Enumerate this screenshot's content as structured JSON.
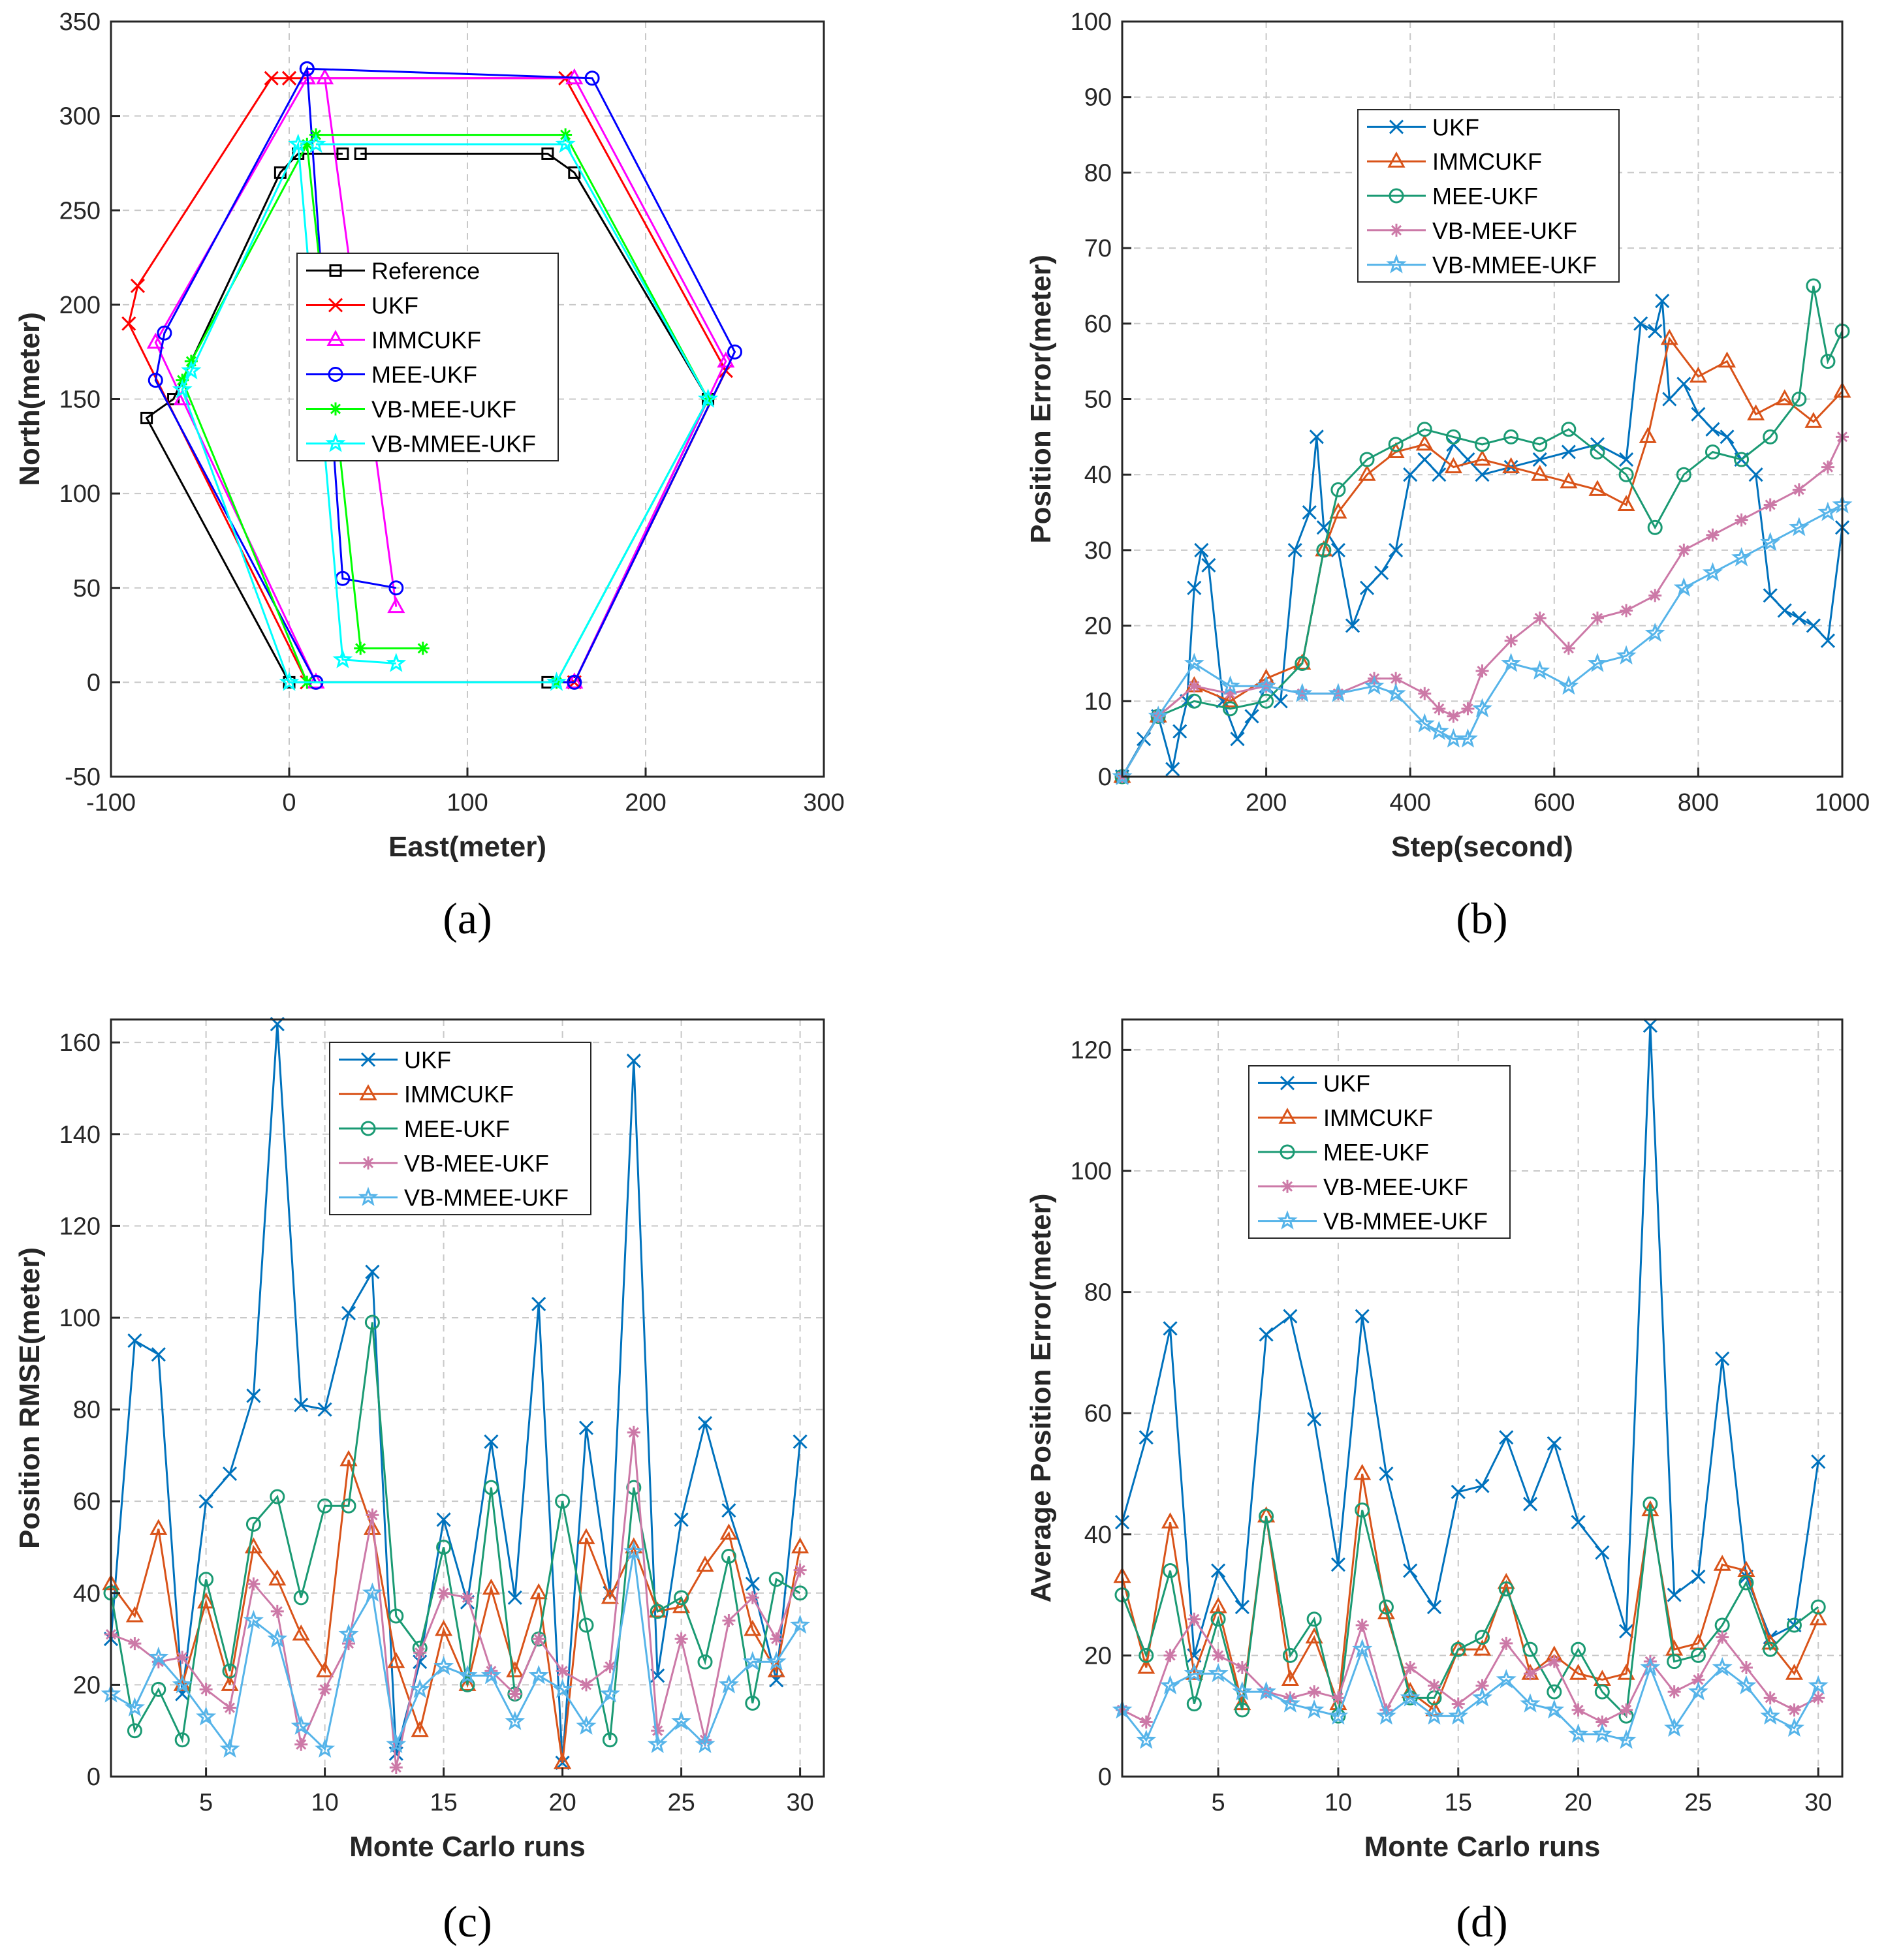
{
  "chart_data": [
    {
      "type": "line",
      "label": "(a)",
      "xlabel": "East(meter)",
      "ylabel": "North(meter)",
      "xlim": [
        -100,
        300
      ],
      "ylim": [
        -50,
        350
      ],
      "xticks": [
        -100,
        0,
        100,
        200,
        300
      ],
      "yticks": [
        -50,
        0,
        50,
        100,
        150,
        200,
        250,
        300,
        350
      ],
      "grid": true,
      "legend_position": "center",
      "series": [
        {
          "name": "Reference",
          "color": "#000000",
          "marker": "square",
          "x": [
            40,
            145,
            160,
            235,
            160,
            145,
            0,
            -80,
            -65,
            -5,
            5,
            30
          ],
          "y": [
            280,
            280,
            270,
            150,
            0,
            0,
            0,
            140,
            150,
            270,
            280,
            280
          ]
        },
        {
          "name": "UKF",
          "color": "#ff0000",
          "marker": "x",
          "x": [
            0,
            155,
            245,
            160,
            10,
            -90,
            -85,
            -10,
            0
          ],
          "y": [
            320,
            320,
            165,
            0,
            0,
            190,
            210,
            320,
            320
          ]
        },
        {
          "name": "IMMCUKF",
          "color": "#ff00ff",
          "marker": "triangle",
          "x": [
            10,
            160,
            245,
            160,
            15,
            -60,
            -75,
            10,
            20,
            60
          ],
          "y": [
            320,
            320,
            170,
            0,
            0,
            150,
            180,
            320,
            320,
            40
          ]
        },
        {
          "name": "MEE-UKF",
          "color": "#0000ff",
          "marker": "circle",
          "x": [
            10,
            170,
            250,
            160,
            15,
            -75,
            -70,
            10,
            30,
            60
          ],
          "y": [
            325,
            320,
            175,
            0,
            0,
            160,
            185,
            325,
            55,
            50
          ]
        },
        {
          "name": "VB-MEE-UKF",
          "color": "#00ff00",
          "marker": "asterisk",
          "x": [
            15,
            155,
            235,
            150,
            10,
            -60,
            -55,
            10,
            40,
            75
          ],
          "y": [
            290,
            290,
            150,
            0,
            0,
            160,
            170,
            285,
            18,
            18
          ]
        },
        {
          "name": "VB-MMEE-UKF",
          "color": "#00ffff",
          "marker": "star",
          "x": [
            15,
            155,
            235,
            150,
            0,
            -60,
            -55,
            5,
            30,
            60
          ],
          "y": [
            285,
            285,
            150,
            0,
            0,
            155,
            165,
            285,
            12,
            10
          ]
        }
      ]
    },
    {
      "type": "line",
      "label": "(b)",
      "xlabel": "Step(second)",
      "ylabel": "Position Error(meter)",
      "xlim": [
        0,
        1000
      ],
      "ylim": [
        0,
        100
      ],
      "xticks": [
        200,
        400,
        600,
        800,
        1000
      ],
      "yticks": [
        0,
        10,
        20,
        30,
        40,
        50,
        60,
        70,
        80,
        90,
        100
      ],
      "grid": true,
      "legend_position": "top-center",
      "series": [
        {
          "name": "UKF",
          "color": "#0072bd",
          "marker": "x",
          "x": [
            0,
            30,
            50,
            70,
            80,
            90,
            100,
            110,
            120,
            140,
            160,
            180,
            200,
            220,
            240,
            260,
            270,
            280,
            300,
            320,
            340,
            360,
            380,
            400,
            420,
            440,
            460,
            480,
            500,
            540,
            580,
            620,
            660,
            700,
            720,
            740,
            750,
            760,
            780,
            800,
            820,
            840,
            860,
            880,
            900,
            920,
            940,
            960,
            980,
            1000
          ],
          "y": [
            0,
            5,
            8,
            1,
            6,
            10,
            25,
            30,
            28,
            10,
            5,
            8,
            12,
            10,
            30,
            35,
            45,
            33,
            30,
            20,
            25,
            27,
            30,
            40,
            42,
            40,
            44,
            42,
            40,
            41,
            42,
            43,
            44,
            42,
            60,
            59,
            63,
            50,
            52,
            48,
            46,
            45,
            42,
            40,
            24,
            22,
            21,
            20,
            18,
            33
          ]
        },
        {
          "name": "IMMCUKF",
          "color": "#d95319",
          "marker": "triangle",
          "x": [
            0,
            50,
            100,
            150,
            200,
            250,
            280,
            300,
            340,
            380,
            420,
            460,
            500,
            540,
            580,
            620,
            660,
            700,
            730,
            760,
            800,
            840,
            880,
            920,
            960,
            1000
          ],
          "y": [
            0,
            8,
            12,
            10,
            13,
            15,
            30,
            35,
            40,
            43,
            44,
            41,
            42,
            41,
            40,
            39,
            38,
            36,
            45,
            58,
            53,
            55,
            48,
            50,
            47,
            51
          ]
        },
        {
          "name": "MEE-UKF",
          "color": "#1a9a73",
          "marker": "circle",
          "x": [
            0,
            50,
            100,
            150,
            200,
            250,
            280,
            300,
            340,
            380,
            420,
            460,
            500,
            540,
            580,
            620,
            660,
            700,
            740,
            780,
            820,
            860,
            900,
            940,
            960,
            980,
            1000
          ],
          "y": [
            0,
            8,
            10,
            9,
            10,
            15,
            30,
            38,
            42,
            44,
            46,
            45,
            44,
            45,
            44,
            46,
            43,
            40,
            33,
            40,
            43,
            42,
            45,
            50,
            65,
            55,
            59
          ]
        },
        {
          "name": "VB-MEE-UKF",
          "color": "#cc79a7",
          "marker": "asterisk",
          "x": [
            0,
            50,
            100,
            150,
            200,
            250,
            300,
            350,
            380,
            420,
            440,
            460,
            480,
            500,
            540,
            580,
            620,
            660,
            700,
            740,
            780,
            820,
            860,
            900,
            940,
            980,
            1000
          ],
          "y": [
            0,
            8,
            12,
            11,
            12,
            11,
            11,
            13,
            13,
            11,
            9,
            8,
            9,
            14,
            18,
            21,
            17,
            21,
            22,
            24,
            30,
            32,
            34,
            36,
            38,
            41,
            45
          ]
        },
        {
          "name": "VB-MMEE-UKF",
          "color": "#56b4e9",
          "marker": "star",
          "x": [
            0,
            50,
            100,
            150,
            200,
            250,
            300,
            350,
            380,
            420,
            440,
            460,
            480,
            500,
            540,
            580,
            620,
            660,
            700,
            740,
            780,
            820,
            860,
            900,
            940,
            980,
            1000
          ],
          "y": [
            0,
            8,
            15,
            12,
            12,
            11,
            11,
            12,
            11,
            7,
            6,
            5,
            5,
            9,
            15,
            14,
            12,
            15,
            16,
            19,
            25,
            27,
            29,
            31,
            33,
            35,
            36
          ]
        }
      ]
    },
    {
      "type": "line",
      "label": "(c)",
      "xlabel": "Monte Carlo runs",
      "ylabel": "Position RMSE(meter)",
      "xlim": [
        1,
        31
      ],
      "ylim": [
        0,
        165
      ],
      "xticks": [
        5,
        10,
        15,
        20,
        25,
        30
      ],
      "yticks": [
        0,
        20,
        40,
        60,
        80,
        100,
        120,
        140,
        160
      ],
      "grid": true,
      "legend_position": "top-center",
      "x": [
        1,
        2,
        3,
        4,
        5,
        6,
        7,
        8,
        9,
        10,
        11,
        12,
        13,
        14,
        15,
        16,
        17,
        18,
        19,
        20,
        21,
        22,
        23,
        24,
        25,
        26,
        27,
        28,
        29,
        30
      ],
      "series": [
        {
          "name": "UKF",
          "color": "#0072bd",
          "marker": "x",
          "values": [
            30,
            95,
            92,
            18,
            60,
            66,
            83,
            164,
            81,
            80,
            101,
            110,
            5,
            25,
            56,
            38,
            73,
            39,
            103,
            3,
            76,
            40,
            156,
            22,
            56,
            77,
            58,
            42,
            21,
            73
          ]
        },
        {
          "name": "IMMCUKF",
          "color": "#d95319",
          "marker": "triangle",
          "values": [
            42,
            35,
            54,
            20,
            38,
            20,
            50,
            43,
            31,
            23,
            69,
            54,
            25,
            10,
            32,
            20,
            41,
            23,
            40,
            3,
            52,
            39,
            50,
            36,
            37,
            46,
            53,
            32,
            23,
            50
          ]
        },
        {
          "name": "MEE-UKF",
          "color": "#1a9a73",
          "marker": "circle",
          "values": [
            40,
            10,
            19,
            8,
            43,
            23,
            55,
            61,
            39,
            59,
            59,
            99,
            35,
            28,
            50,
            20,
            63,
            18,
            30,
            60,
            33,
            8,
            63,
            36,
            39,
            25,
            48,
            16,
            43,
            40
          ]
        },
        {
          "name": "VB-MEE-UKF",
          "color": "#cc79a7",
          "marker": "asterisk",
          "values": [
            31,
            29,
            25,
            26,
            19,
            15,
            42,
            36,
            7,
            19,
            29,
            57,
            2,
            27,
            40,
            39,
            23,
            18,
            30,
            23,
            20,
            24,
            75,
            10,
            30,
            8,
            34,
            39,
            30,
            45
          ]
        },
        {
          "name": "VB-MMEE-UKF",
          "color": "#56b4e9",
          "marker": "star",
          "values": [
            18,
            15,
            26,
            20,
            13,
            6,
            34,
            30,
            11,
            6,
            31,
            40,
            7,
            19,
            24,
            22,
            22,
            12,
            22,
            19,
            11,
            18,
            49,
            7,
            12,
            7,
            20,
            25,
            25,
            33
          ]
        }
      ]
    },
    {
      "type": "line",
      "label": "(d)",
      "xlabel": "Monte Carlo runs",
      "ylabel": "Average Position Error(meter)",
      "xlim": [
        1,
        31
      ],
      "ylim": [
        0,
        125
      ],
      "xticks": [
        5,
        10,
        15,
        20,
        25,
        30
      ],
      "yticks": [
        0,
        20,
        40,
        60,
        80,
        100,
        120
      ],
      "grid": true,
      "legend_position": "top-left",
      "x": [
        1,
        2,
        3,
        4,
        5,
        6,
        7,
        8,
        9,
        10,
        11,
        12,
        13,
        14,
        15,
        16,
        17,
        18,
        19,
        20,
        21,
        22,
        23,
        24,
        25,
        26,
        27,
        28,
        29,
        30
      ],
      "series": [
        {
          "name": "UKF",
          "color": "#0072bd",
          "marker": "x",
          "values": [
            42,
            56,
            74,
            20,
            34,
            28,
            73,
            76,
            59,
            35,
            76,
            50,
            34,
            28,
            47,
            48,
            56,
            45,
            55,
            42,
            37,
            24,
            124,
            30,
            33,
            69,
            33,
            23,
            25,
            52
          ]
        },
        {
          "name": "IMMCUKF",
          "color": "#d95319",
          "marker": "triangle",
          "values": [
            33,
            18,
            42,
            17,
            28,
            12,
            43,
            16,
            23,
            12,
            50,
            27,
            14,
            11,
            21,
            21,
            32,
            17,
            20,
            17,
            16,
            17,
            44,
            21,
            22,
            35,
            34,
            22,
            17,
            26
          ]
        },
        {
          "name": "MEE-UKF",
          "color": "#1a9a73",
          "marker": "circle",
          "values": [
            30,
            20,
            34,
            12,
            26,
            11,
            43,
            20,
            26,
            10,
            44,
            28,
            13,
            13,
            21,
            23,
            31,
            21,
            14,
            21,
            14,
            10,
            45,
            19,
            20,
            25,
            32,
            21,
            25,
            28
          ]
        },
        {
          "name": "VB-MEE-UKF",
          "color": "#cc79a7",
          "marker": "asterisk",
          "values": [
            11,
            9,
            20,
            26,
            20,
            18,
            14,
            13,
            14,
            13,
            25,
            11,
            18,
            15,
            12,
            15,
            22,
            17,
            19,
            11,
            9,
            11,
            19,
            14,
            16,
            23,
            18,
            13,
            11,
            13
          ]
        },
        {
          "name": "VB-MMEE-UKF",
          "color": "#56b4e9",
          "marker": "star",
          "values": [
            11,
            6,
            15,
            17,
            17,
            14,
            14,
            12,
            11,
            10,
            21,
            10,
            13,
            10,
            10,
            13,
            16,
            12,
            11,
            7,
            7,
            6,
            18,
            8,
            14,
            18,
            15,
            10,
            8,
            15
          ]
        }
      ]
    }
  ]
}
